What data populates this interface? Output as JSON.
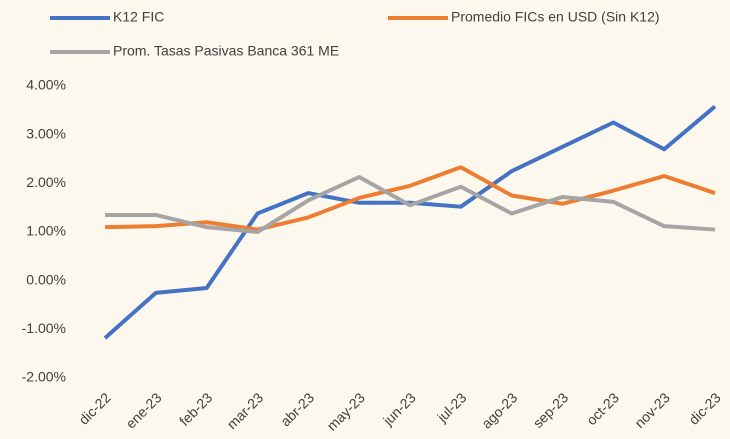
{
  "chart_data": {
    "type": "line",
    "categories": [
      "dic-22",
      "ene-23",
      "feb-23",
      "mar-23",
      "abr-23",
      "may-23",
      "jun-23",
      "jul-23",
      "ago-23",
      "sep-23",
      "oct-23",
      "nov-23",
      "dic-23"
    ],
    "series": [
      {
        "name": "K12 FIC",
        "color": "#4472c4",
        "values": [
          -1.18,
          -0.25,
          -0.15,
          1.38,
          1.8,
          1.6,
          1.6,
          1.52,
          2.25,
          2.75,
          3.25,
          2.7,
          3.58
        ]
      },
      {
        "name": "Promedio FICs en USD (Sin K12)",
        "color": "#ed7d31",
        "values": [
          1.1,
          1.12,
          1.2,
          1.05,
          1.3,
          1.7,
          1.95,
          2.33,
          1.75,
          1.58,
          1.85,
          2.15,
          1.8
        ]
      },
      {
        "name": "Prom. Tasas Pasivas Banca 361 ME",
        "color": "#a5a5a5",
        "values": [
          1.35,
          1.35,
          1.1,
          1.0,
          1.65,
          2.13,
          1.55,
          1.93,
          1.38,
          1.72,
          1.62,
          1.12,
          1.05
        ]
      }
    ],
    "ylim": [
      -2,
      4
    ],
    "yticks": [
      {
        "value": -2,
        "label": "-2.00%"
      },
      {
        "value": -1,
        "label": "-1.00%"
      },
      {
        "value": 0,
        "label": "0.00%"
      },
      {
        "value": 1,
        "label": "1.00%"
      },
      {
        "value": 2,
        "label": "2.00%"
      },
      {
        "value": 3,
        "label": "3.00%"
      },
      {
        "value": 4,
        "label": "4.00%"
      }
    ],
    "grid": false
  }
}
